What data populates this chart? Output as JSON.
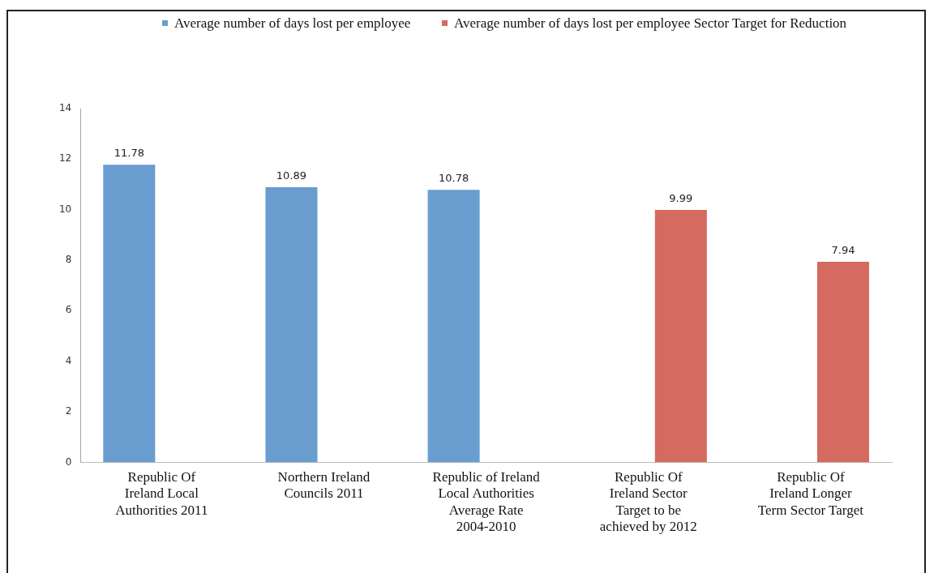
{
  "chart_data": {
    "type": "bar",
    "categories": [
      "Republic Of Ireland Local Authorities 2011",
      "Northern Ireland Councils 2011",
      "Republic of Ireland Local Authorities Average Rate 2004-2010",
      "Republic Of Ireland Sector Target to be achieved by 2012",
      "Republic Of Ireland Longer Term Sector Target"
    ],
    "series": [
      {
        "name": "Average number of days lost per employee",
        "color": "#6a9dcf",
        "values": [
          11.78,
          10.89,
          10.78,
          null,
          null
        ]
      },
      {
        "name": "Average number of days lost per employee Sector Target for Reduction",
        "color": "#d46a60",
        "values": [
          null,
          null,
          null,
          9.99,
          7.94
        ]
      }
    ],
    "ylim": [
      0,
      14
    ],
    "yticks": [
      0,
      2,
      4,
      6,
      8,
      10,
      12,
      14
    ],
    "grid": false,
    "legend": "top",
    "data_labels": true
  }
}
